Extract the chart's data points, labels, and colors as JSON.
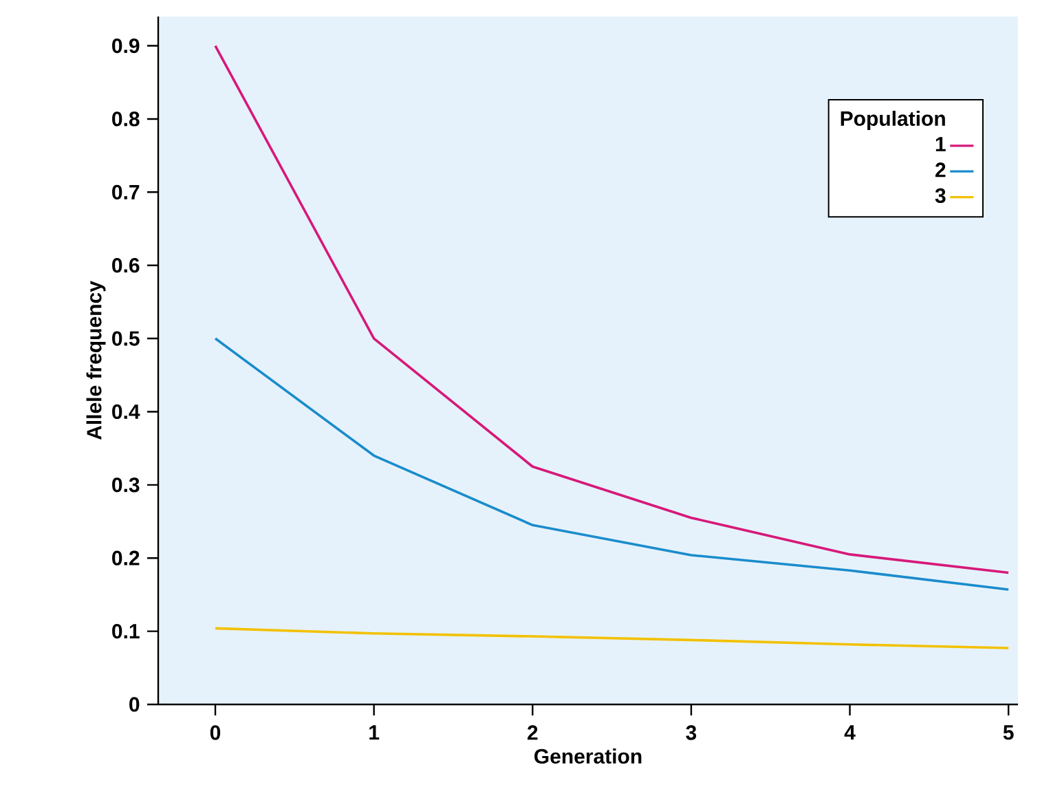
{
  "chart_data": {
    "type": "line",
    "xlabel": "Generation",
    "ylabel": "Allele frequency",
    "legend_title": "Population",
    "x": [
      0,
      1,
      2,
      3,
      4,
      5
    ],
    "series": [
      {
        "name": "1",
        "color": "#d6197a",
        "values": [
          0.9,
          0.5,
          0.325,
          0.255,
          0.205,
          0.18
        ]
      },
      {
        "name": "2",
        "color": "#1a8ccc",
        "values": [
          0.5,
          0.34,
          0.245,
          0.204,
          0.183,
          0.157
        ]
      },
      {
        "name": "3",
        "color": "#f2c100",
        "values": [
          0.104,
          0.097,
          0.093,
          0.088,
          0.082,
          0.077
        ]
      }
    ],
    "xlim": [
      -0.36,
      5.06
    ],
    "ylim": [
      0,
      0.94
    ],
    "xticks": [
      0,
      1,
      2,
      3,
      4,
      5
    ],
    "yticks": [
      0,
      0.1,
      0.2,
      0.3,
      0.4,
      0.5,
      0.6,
      0.7,
      0.8,
      0.9
    ],
    "grid": false,
    "legend": "top right",
    "marker": "none",
    "line_style": "solid"
  }
}
